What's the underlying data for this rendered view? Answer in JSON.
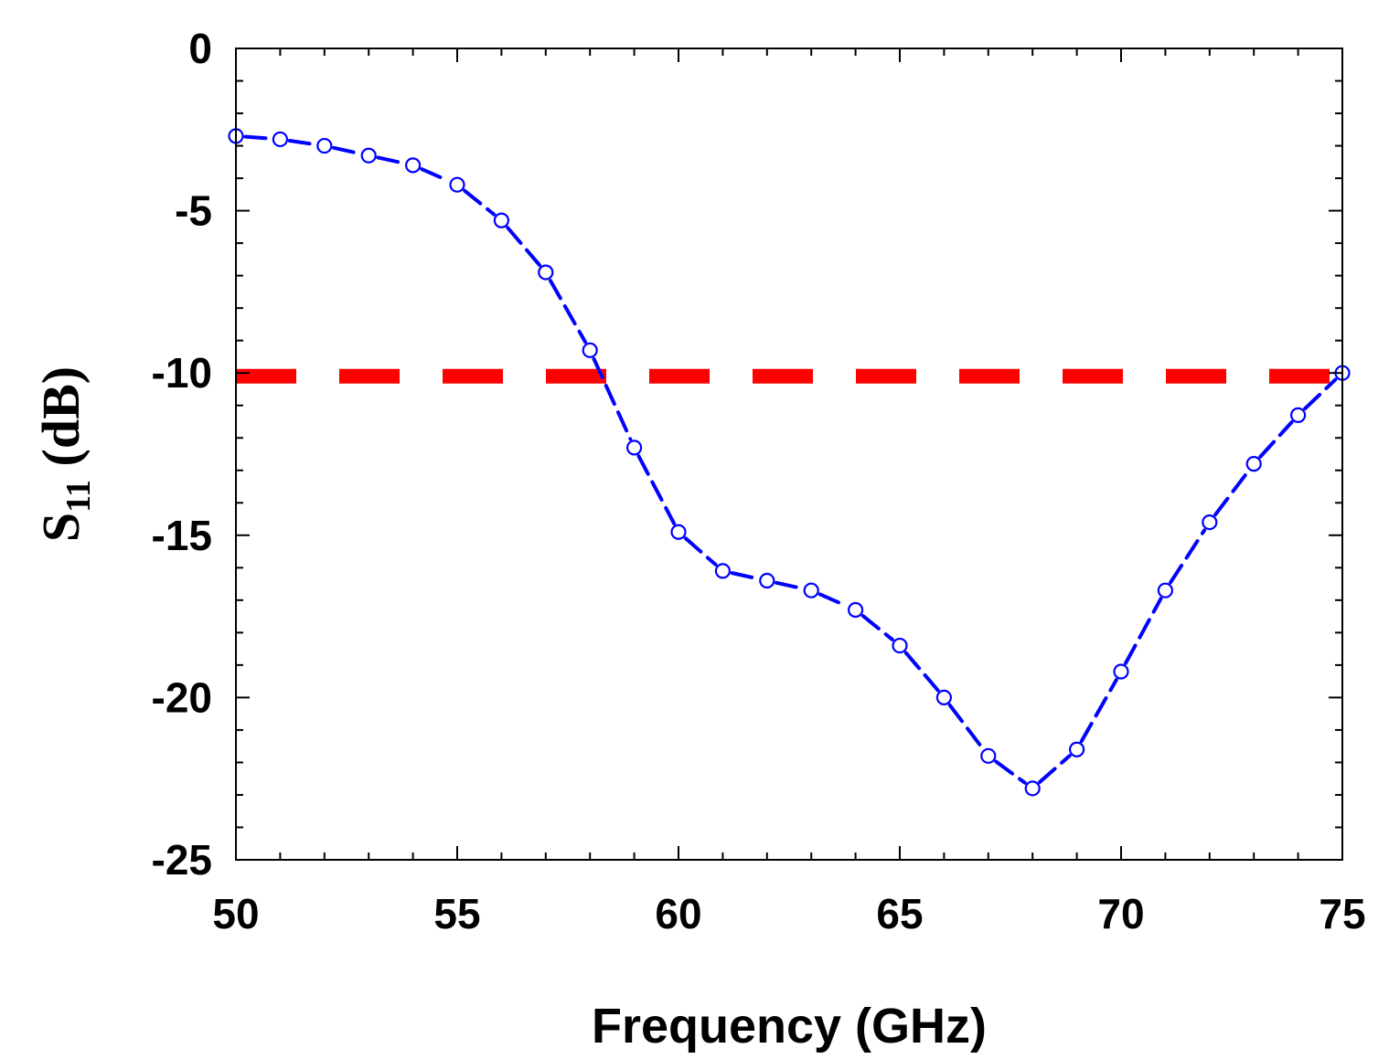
{
  "chart_data": {
    "type": "line",
    "xlabel": "Frequency (GHz)",
    "ylabel": {
      "main": "S",
      "sub": "11",
      "unit": " (dB)"
    },
    "xlim": [
      50,
      75
    ],
    "ylim": [
      -25,
      0
    ],
    "xticks": [
      50,
      55,
      60,
      65,
      70,
      75
    ],
    "yticks": [
      0,
      -5,
      -10,
      -15,
      -20,
      -25
    ],
    "xtick_labels": [
      "50",
      "55",
      "60",
      "65",
      "70",
      "75"
    ],
    "ytick_labels": [
      "0",
      "-5",
      "-10",
      "-15",
      "-20",
      "-25"
    ],
    "grid": false,
    "series": [
      {
        "color": "#0000ff",
        "marker": "open-circle",
        "line_style": "dashed",
        "x": [
          50,
          51,
          52,
          53,
          54,
          55,
          56,
          57,
          58,
          59,
          60,
          61,
          62,
          63,
          64,
          65,
          66,
          67,
          68,
          69,
          70,
          71,
          72,
          73,
          74,
          75
        ],
        "y": [
          -2.7,
          -2.8,
          -3.0,
          -3.3,
          -3.6,
          -4.2,
          -5.3,
          -6.9,
          -9.3,
          -12.3,
          -14.9,
          -16.1,
          -16.4,
          -16.7,
          -17.3,
          -18.4,
          -20.0,
          -21.8,
          -22.8,
          -21.6,
          -19.2,
          -16.7,
          -14.6,
          -12.8,
          -11.3,
          -10.0
        ]
      }
    ],
    "reference_line": {
      "y": -10.1,
      "color": "#ff0000",
      "line_style": "dashed"
    }
  }
}
